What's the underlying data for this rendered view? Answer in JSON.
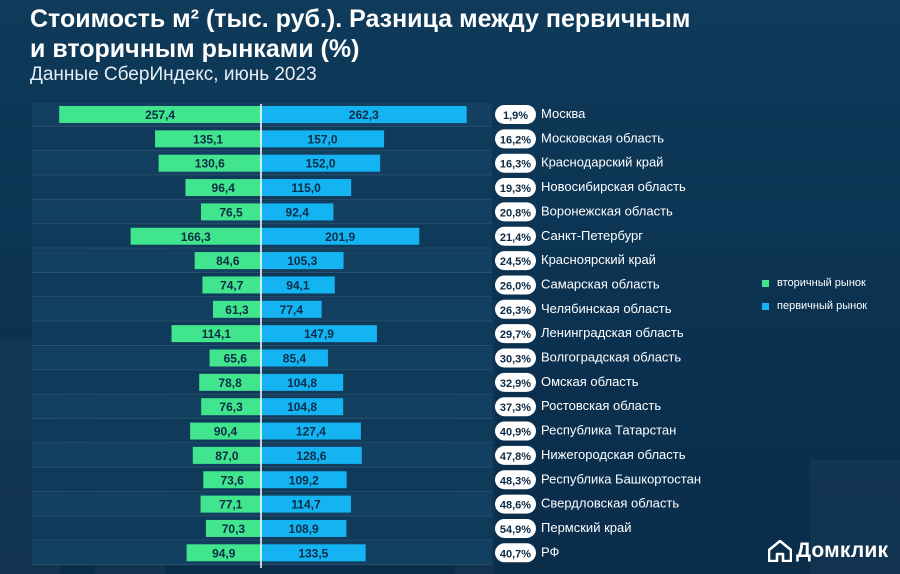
{
  "title": "Стоимость м² (тыс. руб.). Разница между первичным\nи вторичным рынками (%)",
  "subtitle": "Данные СберИндекс, июнь 2023",
  "legend": {
    "secondary": "вторичный рынок",
    "primary": "первичный рынок"
  },
  "brand": "Домклик",
  "colors": {
    "secondary": "#41e58d",
    "primary": "#14b3f2",
    "background": "#0c3452"
  },
  "chart_data": {
    "type": "bar",
    "orientation": "horizontal-diverging",
    "categories": [
      "Москва",
      "Московская область",
      "Краснодарский край",
      "Новосибирская область",
      "Воронежская область",
      "Санкт-Петербург",
      "Красноярский край",
      "Самарская область",
      "Челябинская область",
      "Ленинградская область",
      "Волгоградская область",
      "Омская область",
      "Ростовская область",
      "Республика Татарстан",
      "Нижегородская область",
      "Республика Башкортостан",
      "Свердловская область",
      "Пермский край",
      "РФ"
    ],
    "series": [
      {
        "name": "вторичный рынок",
        "values": [
          257.4,
          135.1,
          130.6,
          96.4,
          76.5,
          166.3,
          84.6,
          74.7,
          61.3,
          114.1,
          65.6,
          78.8,
          76.3,
          90.4,
          87.0,
          73.6,
          77.1,
          70.3,
          94.9
        ],
        "labels": [
          "257,4",
          "135,1",
          "130,6",
          "96,4",
          "76,5",
          "166,3",
          "84,6",
          "74,7",
          "61,3",
          "114,1",
          "65,6",
          "78,8",
          "76,3",
          "90,4",
          "87,0",
          "73,6",
          "77,1",
          "70,3",
          "94,9"
        ]
      },
      {
        "name": "первичный рынок",
        "values": [
          262.3,
          157.0,
          152.0,
          115.0,
          92.4,
          201.9,
          105.3,
          94.1,
          77.4,
          147.9,
          85.4,
          104.8,
          104.8,
          127.4,
          128.6,
          109.2,
          114.7,
          108.9,
          133.5
        ],
        "labels": [
          "262,3",
          "157,0",
          "152,0",
          "115,0",
          "92,4",
          "201,9",
          "105,3",
          "94,1",
          "77,4",
          "147,9",
          "85,4",
          "104,8",
          "104,8",
          "127,4",
          "128,6",
          "109,2",
          "114,7",
          "108,9",
          "133,5"
        ]
      }
    ],
    "difference_percent": [
      1.9,
      16.2,
      16.3,
      19.3,
      20.8,
      21.4,
      24.5,
      26.0,
      26.3,
      29.7,
      30.3,
      32.9,
      37.3,
      40.9,
      47.8,
      48.3,
      48.6,
      54.9,
      40.7
    ],
    "difference_labels": [
      "1,9%",
      "16,2%",
      "16,3%",
      "19,3%",
      "20,8%",
      "21,4%",
      "24,5%",
      "26,0%",
      "26,3%",
      "29,7%",
      "30,3%",
      "32,9%",
      "37,3%",
      "40,9%",
      "47,8%",
      "48,3%",
      "48,6%",
      "54,9%",
      "40,7%"
    ],
    "legend_position": "right",
    "grid": false
  }
}
